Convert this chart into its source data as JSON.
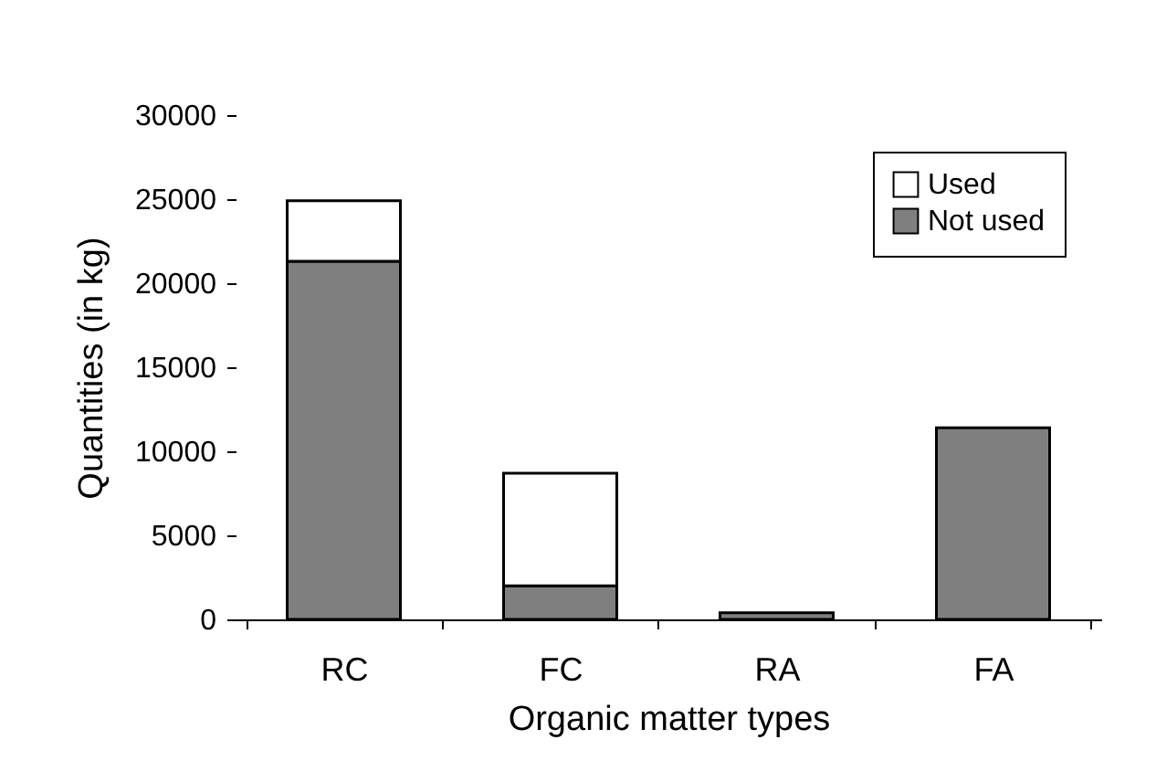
{
  "chart_data": {
    "type": "bar",
    "stacked": true,
    "xlabel": "Organic matter types",
    "ylabel": "Quantities (in kg)",
    "categories": [
      "RC",
      "FC",
      "RA",
      "FA"
    ],
    "series": [
      {
        "name": "Not used",
        "color": "#7f7f7f",
        "values": [
          21300,
          2000,
          400,
          11400
        ]
      },
      {
        "name": "Used",
        "color": "#ffffff",
        "values": [
          3600,
          6700,
          0,
          0
        ]
      }
    ],
    "ylim": [
      0,
      30000
    ],
    "yticks": [
      0,
      5000,
      10000,
      15000,
      20000,
      25000,
      30000
    ],
    "grid": false,
    "legend": "top right"
  }
}
